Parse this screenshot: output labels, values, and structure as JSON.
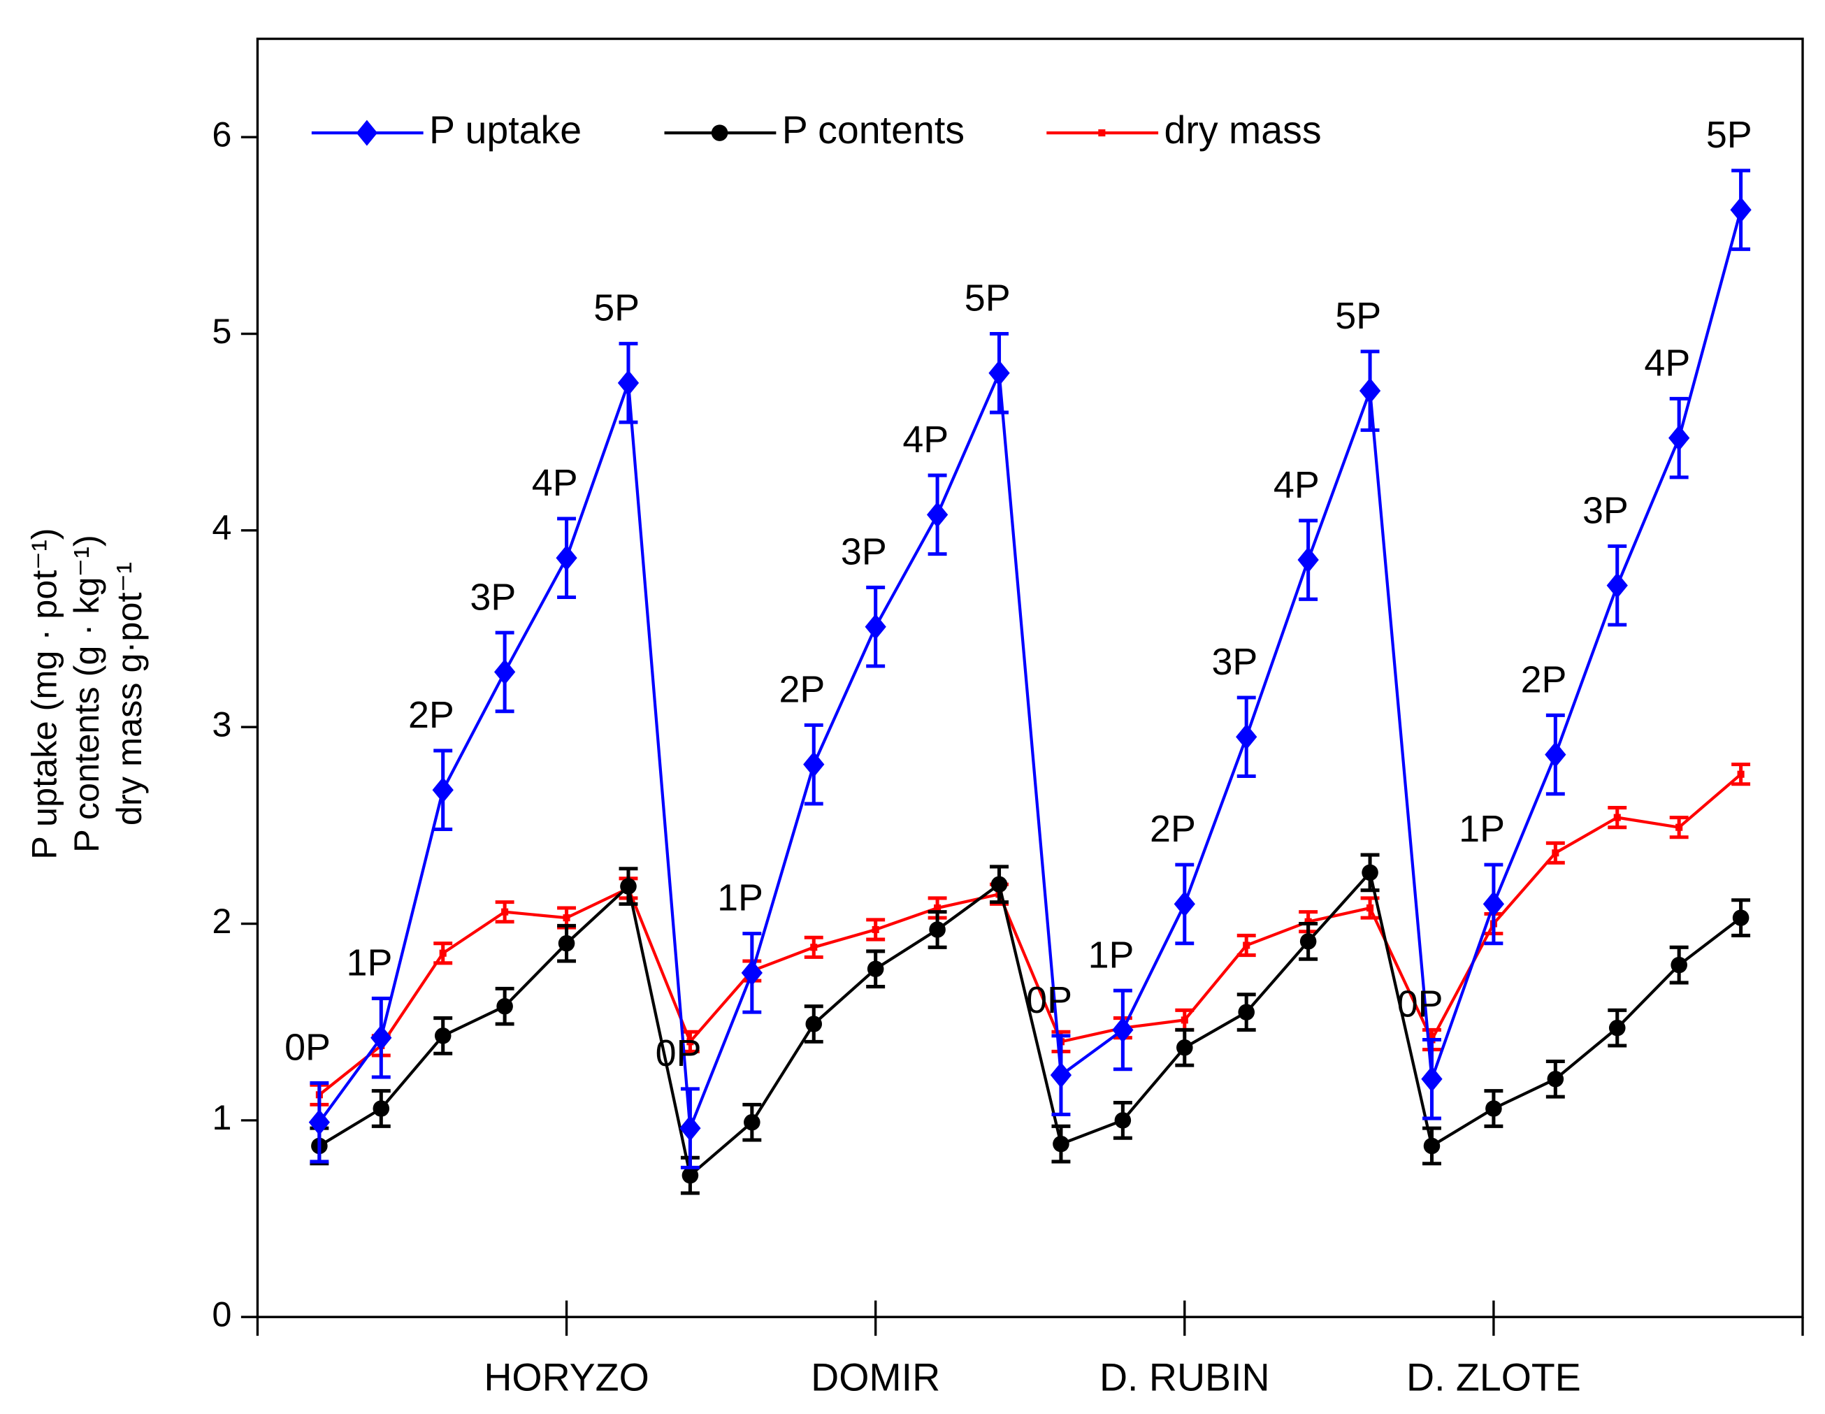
{
  "chart_data": {
    "type": "line",
    "ylabel": [
      "P uptake (mg · pot⁻¹)",
      "P contents (g · kg⁻¹)",
      "dry mass g·pot⁻¹"
    ],
    "x": [
      1,
      2,
      3,
      4,
      5,
      6,
      7,
      8,
      9,
      10,
      11,
      12,
      13,
      14,
      15,
      16,
      17,
      18,
      19,
      20,
      21,
      22,
      23,
      24
    ],
    "xlim": [
      0,
      25
    ],
    "xticks": [
      {
        "value": 5,
        "label": "HORYZO"
      },
      {
        "value": 10,
        "label": "DOMIR"
      },
      {
        "value": 15,
        "label": "D. RUBIN"
      },
      {
        "value": 20,
        "label": "D. ZLOTE"
      }
    ],
    "ylim": [
      0,
      6.5
    ],
    "yticks": [
      0,
      1,
      2,
      3,
      4,
      5,
      6
    ],
    "point_labels": [
      "0P",
      "1P",
      "2P",
      "3P",
      "4P",
      "5P"
    ],
    "legend": "top",
    "series": [
      {
        "name": "P uptake",
        "color": "#0000ff",
        "marker": "diamond",
        "values": [
          0.99,
          1.42,
          2.68,
          3.28,
          3.86,
          4.75,
          0.96,
          1.75,
          2.81,
          3.51,
          4.08,
          4.8,
          1.23,
          1.46,
          2.1,
          2.95,
          3.85,
          4.71,
          1.21,
          2.1,
          2.86,
          3.72,
          4.47,
          5.63
        ],
        "errors": [
          0.2,
          0.2,
          0.2,
          0.2,
          0.2,
          0.2,
          0.2,
          0.2,
          0.2,
          0.2,
          0.2,
          0.2,
          0.2,
          0.2,
          0.2,
          0.2,
          0.2,
          0.2,
          0.2,
          0.2,
          0.2,
          0.2,
          0.2,
          0.2
        ]
      },
      {
        "name": "P contents",
        "color": "#000000",
        "marker": "circle",
        "values": [
          0.87,
          1.06,
          1.43,
          1.58,
          1.9,
          2.19,
          0.72,
          0.99,
          1.49,
          1.77,
          1.97,
          2.2,
          0.88,
          1.0,
          1.37,
          1.55,
          1.91,
          2.26,
          0.87,
          1.06,
          1.21,
          1.47,
          1.79,
          2.03
        ],
        "errors": [
          0.09,
          0.09,
          0.09,
          0.09,
          0.09,
          0.09,
          0.09,
          0.09,
          0.09,
          0.09,
          0.09,
          0.09,
          0.09,
          0.09,
          0.09,
          0.09,
          0.09,
          0.09,
          0.09,
          0.09,
          0.09,
          0.09,
          0.09,
          0.09
        ]
      },
      {
        "name": "dry mass",
        "color": "#ff0000",
        "marker": "square",
        "values": [
          1.13,
          1.38,
          1.85,
          2.06,
          2.03,
          2.18,
          1.4,
          1.76,
          1.88,
          1.97,
          2.08,
          2.15,
          1.4,
          1.47,
          1.51,
          1.89,
          2.01,
          2.08,
          1.41,
          2.0,
          2.36,
          2.54,
          2.49,
          2.76
        ],
        "errors": [
          0.05,
          0.05,
          0.05,
          0.05,
          0.05,
          0.05,
          0.05,
          0.05,
          0.05,
          0.05,
          0.05,
          0.05,
          0.05,
          0.05,
          0.05,
          0.05,
          0.05,
          0.05,
          0.05,
          0.05,
          0.05,
          0.05,
          0.05,
          0.05
        ]
      }
    ]
  }
}
